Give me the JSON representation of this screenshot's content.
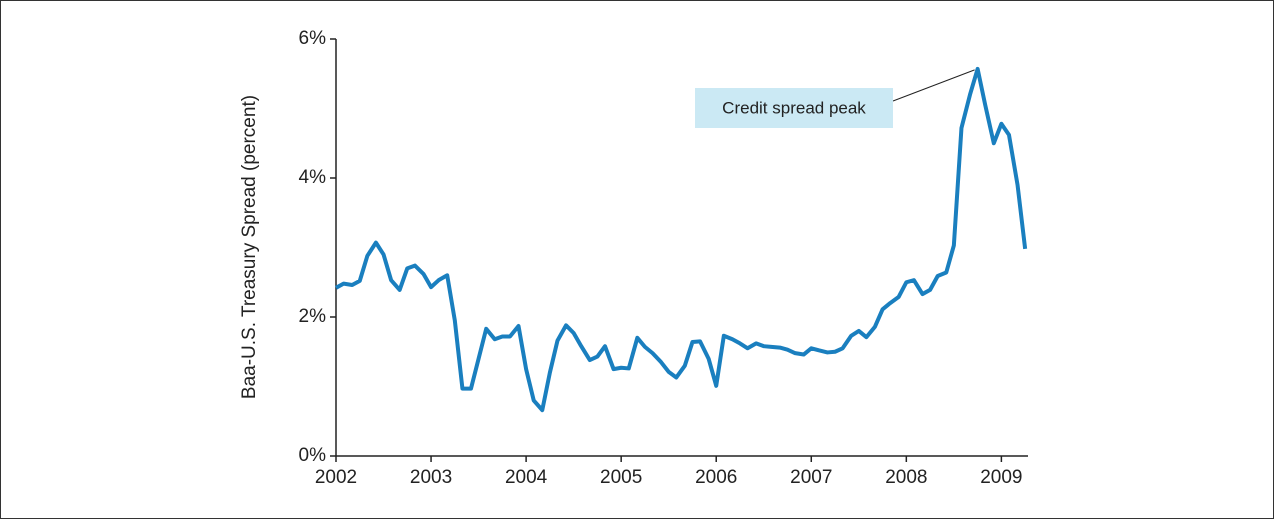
{
  "chart_data": {
    "type": "line",
    "y_label": "Baa-U.S. Treasury Spread (percent)",
    "annotation": "Credit spread peak",
    "x": [
      2002,
      2002.08,
      2002.17,
      2002.25,
      2002.33,
      2002.42,
      2002.5,
      2002.58,
      2002.67,
      2002.75,
      2002.83,
      2002.92,
      2003,
      2003.08,
      2003.17,
      2003.25,
      2003.33,
      2003.42,
      2003.5,
      2003.58,
      2003.67,
      2003.75,
      2003.83,
      2003.92,
      2004,
      2004.08,
      2004.17,
      2004.25,
      2004.33,
      2004.42,
      2004.5,
      2004.58,
      2004.67,
      2004.75,
      2004.83,
      2004.92,
      2005,
      2005.08,
      2005.17,
      2005.25,
      2005.33,
      2005.42,
      2005.5,
      2005.58,
      2005.67,
      2005.75,
      2005.83,
      2005.92,
      2006,
      2006.08,
      2006.17,
      2006.25,
      2006.33,
      2006.42,
      2006.5,
      2006.58,
      2006.67,
      2006.75,
      2006.83,
      2006.92,
      2007,
      2007.08,
      2007.17,
      2007.25,
      2007.33,
      2007.42,
      2007.5,
      2007.58,
      2007.67,
      2007.75,
      2007.83,
      2007.92,
      2008,
      2008.08,
      2008.17,
      2008.25,
      2008.33,
      2008.42,
      2008.5,
      2008.58,
      2008.67,
      2008.75,
      2008.83,
      2008.92,
      2009,
      2009.08,
      2009.17,
      2009.25
    ],
    "series": [
      {
        "color": "#1a7fbf",
        "values": [
          2.42,
          2.48,
          2.46,
          2.52,
          2.88,
          3.07,
          2.9,
          2.53,
          2.39,
          2.7,
          2.74,
          2.62,
          2.43,
          2.53,
          2.6,
          1.95,
          0.97,
          0.97,
          1.4,
          1.83,
          1.68,
          1.72,
          1.72,
          1.87,
          1.25,
          0.8,
          0.66,
          1.2,
          1.66,
          1.88,
          1.77,
          1.58,
          1.38,
          1.43,
          1.58,
          1.25,
          1.27,
          1.26,
          1.7,
          1.57,
          1.48,
          1.35,
          1.21,
          1.13,
          1.3,
          1.64,
          1.65,
          1.4,
          1.01,
          1.73,
          1.68,
          1.62,
          1.55,
          1.62,
          1.58,
          1.57,
          1.56,
          1.53,
          1.48,
          1.46,
          1.55,
          1.52,
          1.49,
          1.5,
          1.55,
          1.73,
          1.8,
          1.71,
          1.86,
          2.11,
          2.2,
          2.29,
          2.5,
          2.53,
          2.33,
          2.39,
          2.59,
          2.64,
          3.03,
          4.72,
          5.2,
          5.57,
          5.05,
          4.5,
          4.78,
          4.62,
          3.9,
          2.98
        ]
      }
    ],
    "xlim": [
      2002,
      2009.28
    ],
    "xticks": [
      2002,
      2003,
      2004,
      2005,
      2006,
      2007,
      2008,
      2009
    ],
    "ylim": [
      0,
      6
    ],
    "yticks": [
      {
        "value": 0,
        "label": "0%"
      },
      {
        "value": 2,
        "label": "2%"
      },
      {
        "value": 4,
        "label": "4%"
      },
      {
        "value": 6,
        "label": "6%"
      }
    ],
    "grid": false
  }
}
